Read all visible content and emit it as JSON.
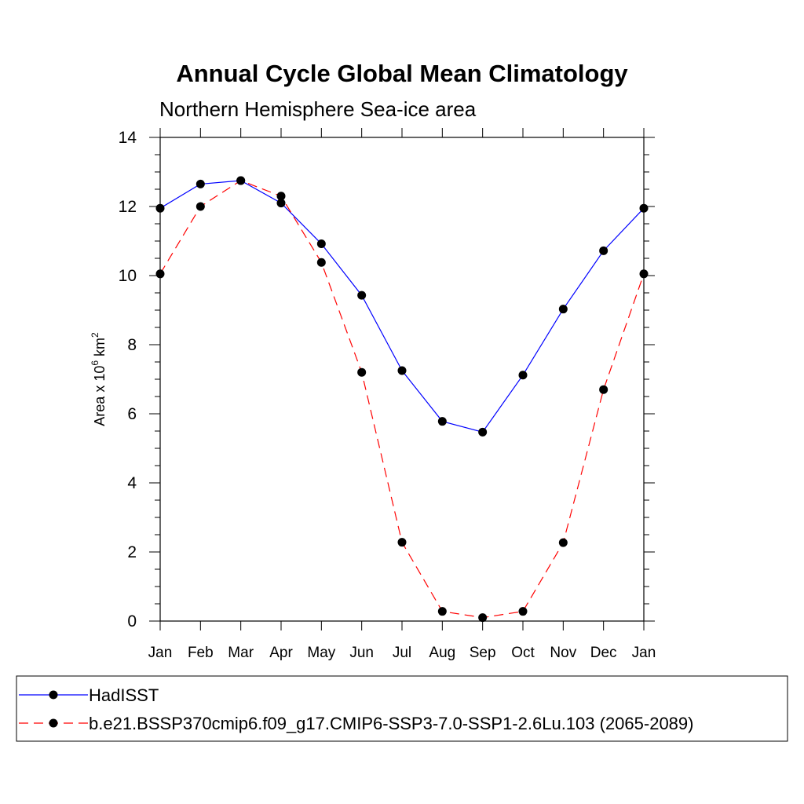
{
  "chart_data": {
    "type": "line",
    "title": "Annual Cycle Global Mean Climatology",
    "subtitle": "Northern Hemisphere Sea-ice area",
    "ylabel": {
      "prefix": "Area x 10",
      "exp1": "6",
      "mid": " km",
      "exp2": "2"
    },
    "ylim": [
      0,
      14
    ],
    "yticks": [
      0,
      2,
      4,
      6,
      8,
      10,
      12,
      14
    ],
    "categories": [
      "Jan",
      "Feb",
      "Mar",
      "Apr",
      "May",
      "Jun",
      "Jul",
      "Aug",
      "Sep",
      "Oct",
      "Nov",
      "Dec",
      "Jan"
    ],
    "series": [
      {
        "name": "HadISST",
        "color": "#0000ff",
        "dash": "solid",
        "values": [
          11.95,
          12.65,
          12.75,
          12.1,
          10.92,
          9.43,
          7.25,
          5.78,
          5.47,
          7.12,
          9.03,
          10.72,
          11.95
        ]
      },
      {
        "name": "b.e21.BSSP370cmip6.f09_g17.CMIP6-SSP3-7.0-SSP1-2.6Lu.103 (2065-2089)",
        "color": "#ff0000",
        "dash": "dashed",
        "values": [
          10.05,
          12.0,
          12.75,
          12.3,
          10.38,
          7.2,
          2.28,
          0.28,
          0.1,
          0.28,
          2.27,
          6.7,
          10.05
        ]
      }
    ],
    "marker_color": "#000000"
  }
}
